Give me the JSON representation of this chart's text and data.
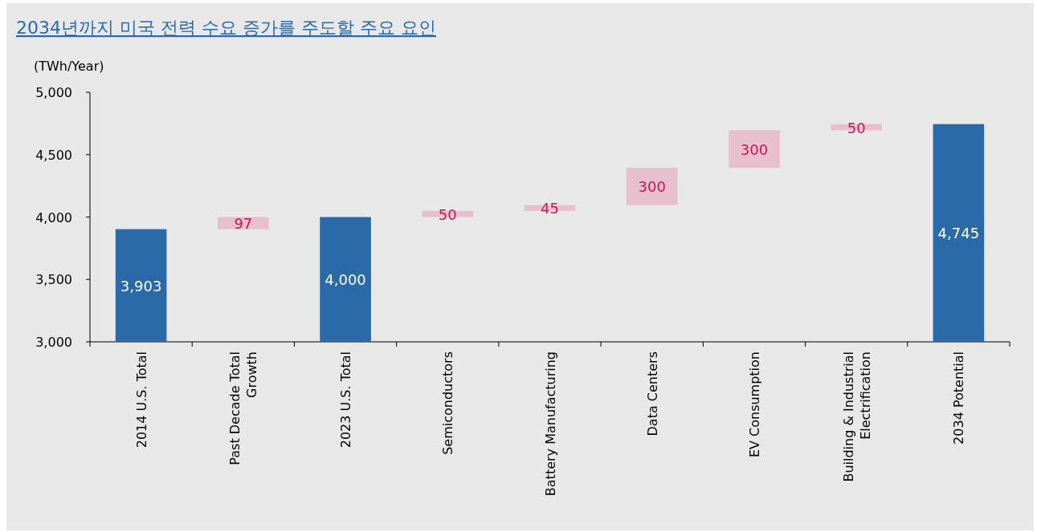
{
  "chart_data": {
    "type": "bar",
    "title": "2034년까지 미국 전력 수요 증가를 주도할 주요 요인",
    "ylabel": "(TWh/Year)",
    "categories": [
      "2014 U.S. Total",
      "Past Decade Total Growth",
      "2023 U.S. Total",
      "Semiconductors",
      "Battery Manufacturing",
      "Data Centers",
      "EV Consumption",
      "Building & Industrial Electrification",
      "2034 Potential"
    ],
    "values": [
      3903,
      97,
      4000,
      50,
      45,
      300,
      300,
      50,
      4745
    ],
    "base": [
      null,
      3903,
      null,
      4000,
      4050,
      4095,
      4395,
      4695,
      null
    ],
    "colors": [
      "#2a6aa8",
      "#e8bfcc",
      "#2a6aa8",
      "#e8bfcc",
      "#e8bfcc",
      "#e8bfcc",
      "#e8bfcc",
      "#e8bfcc",
      "#2a6aa8"
    ],
    "value_labels": [
      "3,903",
      "97",
      "4,000",
      "50",
      "45",
      "300",
      "300",
      "50",
      "4,745"
    ],
    "ylim": [
      3000,
      5000
    ],
    "yticks": [
      {
        "value": 3000,
        "label": "3,000"
      },
      {
        "value": 3500,
        "label": "3,500"
      },
      {
        "value": 4000,
        "label": "4,000"
      },
      {
        "value": 4500,
        "label": "4,500"
      },
      {
        "value": 5000,
        "label": "5,000"
      }
    ],
    "legend": false,
    "grid": false
  }
}
